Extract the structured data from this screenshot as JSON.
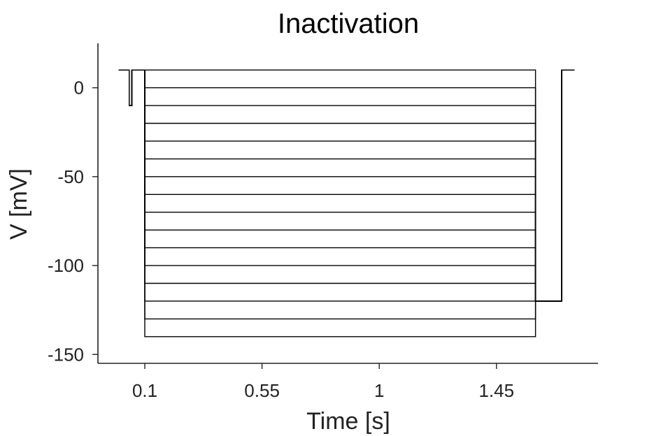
{
  "chart_data": {
    "type": "line",
    "title": "Inactivation",
    "xlabel": "Time [s]",
    "ylabel": "V [mV]",
    "xlim": [
      -0.08,
      1.84
    ],
    "ylim": [
      -155,
      25
    ],
    "xticks": [
      0.1,
      0.55,
      1,
      1.45
    ],
    "xtick_labels": [
      "0.1",
      "0.55",
      "1",
      "1.45"
    ],
    "yticks": [
      0,
      -50,
      -100,
      -150
    ],
    "ytick_labels": [
      "0",
      "-50",
      "-100",
      "-150"
    ],
    "grid": false,
    "legend": "none",
    "protocol": {
      "hold_mV": 10,
      "hold_start_s": -0.0,
      "prepulse_mV": -10,
      "prepulse_start_s": 0.04,
      "prepulse_end_s": 0.05,
      "conditioning_start_s": 0.1,
      "conditioning_end_s": 1.6,
      "conditioning_mV": [
        10,
        0,
        -10,
        -20,
        -30,
        -40,
        -50,
        -60,
        -70,
        -80,
        -90,
        -100,
        -110,
        -120,
        -130,
        -140
      ],
      "test_mV": -120,
      "test_end_s": 1.7,
      "final_mV": 10,
      "end_s": 1.75
    }
  }
}
